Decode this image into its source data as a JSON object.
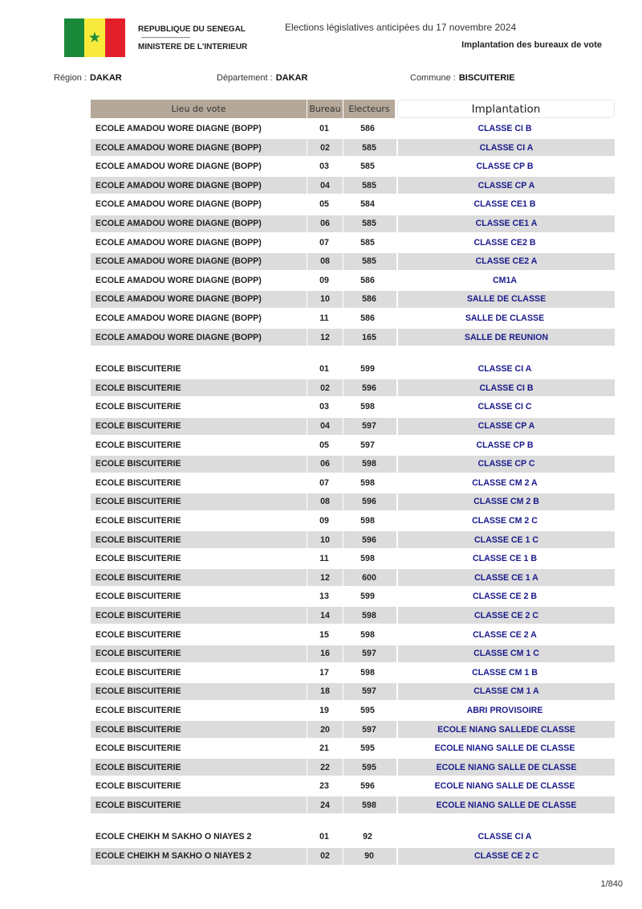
{
  "header": {
    "republic": "REPUBLIQUE DU SENEGAL",
    "separator": "----------------------------",
    "ministry": "MINISTERE DE L'INTERIEUR",
    "election": "Elections législatives anticipées du 17 novembre 2024",
    "doc_title": "Implantation des bureaux de vote",
    "flag_colors": [
      "#1a8a3a",
      "#f7ea3a",
      "#e3202a"
    ]
  },
  "location": {
    "region_label": "Région :",
    "region": "DAKAR",
    "departement_label": "Département :",
    "departement": "DAKAR",
    "commune_label": "Commune :",
    "commune": "BISCUITERIE"
  },
  "table": {
    "columns": [
      "Lieu de vote",
      "Bureau",
      "Electeurs",
      "Implantation"
    ],
    "groups": [
      {
        "lieu": "ECOLE AMADOU WORE DIAGNE (BOPP)",
        "rows": [
          [
            "01",
            "586",
            "CLASSE CI B"
          ],
          [
            "02",
            "585",
            "CLASSE CI A"
          ],
          [
            "03",
            "585",
            "CLASSE CP B"
          ],
          [
            "04",
            "585",
            "CLASSE CP A"
          ],
          [
            "05",
            "584",
            "CLASSE CE1 B"
          ],
          [
            "06",
            "585",
            "CLASSE CE1 A"
          ],
          [
            "07",
            "585",
            "CLASSE CE2 B"
          ],
          [
            "08",
            "585",
            "CLASSE CE2 A"
          ],
          [
            "09",
            "586",
            "CM1A"
          ],
          [
            "10",
            "586",
            "SALLE DE CLASSE"
          ],
          [
            "11",
            "586",
            "SALLE DE CLASSE"
          ],
          [
            "12",
            "165",
            "SALLE DE REUNION"
          ]
        ]
      },
      {
        "lieu": "ECOLE BISCUITERIE",
        "rows": [
          [
            "01",
            "599",
            "CLASSE CI A"
          ],
          [
            "02",
            "596",
            "CLASSE CI B"
          ],
          [
            "03",
            "598",
            "CLASSE CI C"
          ],
          [
            "04",
            "597",
            "CLASSE CP A"
          ],
          [
            "05",
            "597",
            "CLASSE CP B"
          ],
          [
            "06",
            "598",
            "CLASSE CP C"
          ],
          [
            "07",
            "598",
            "CLASSE CM 2 A"
          ],
          [
            "08",
            "596",
            "CLASSE CM 2 B"
          ],
          [
            "09",
            "598",
            "CLASSE CM 2 C"
          ],
          [
            "10",
            "596",
            "CLASSE CE 1 C"
          ],
          [
            "11",
            "598",
            "CLASSE CE 1 B"
          ],
          [
            "12",
            "600",
            "CLASSE CE 1 A"
          ],
          [
            "13",
            "599",
            "CLASSE CE 2 B"
          ],
          [
            "14",
            "598",
            "CLASSE CE 2 C"
          ],
          [
            "15",
            "598",
            "CLASSE CE 2 A"
          ],
          [
            "16",
            "597",
            "CLASSE CM 1 C"
          ],
          [
            "17",
            "598",
            "CLASSE CM 1 B"
          ],
          [
            "18",
            "597",
            "CLASSE CM 1 A"
          ],
          [
            "19",
            "595",
            "ABRI PROVISOIRE"
          ],
          [
            "20",
            "597",
            "ECOLE NIANG SALLEDE CLASSE"
          ],
          [
            "21",
            "595",
            "ECOLE NIANG SALLE DE CLASSE"
          ],
          [
            "22",
            "595",
            "ECOLE NIANG SALLE DE CLASSE"
          ],
          [
            "23",
            "596",
            "ECOLE NIANG SALLE DE CLASSE"
          ],
          [
            "24",
            "598",
            "ECOLE NIANG SALLE DE CLASSE"
          ]
        ]
      },
      {
        "lieu": "ECOLE CHEIKH M SAKHO O NIAYES 2",
        "rows": [
          [
            "01",
            "92",
            "CLASSE CI A"
          ],
          [
            "02",
            "90",
            "CLASSE CE 2 C"
          ]
        ]
      }
    ]
  },
  "footer": {
    "page": "1/840"
  }
}
